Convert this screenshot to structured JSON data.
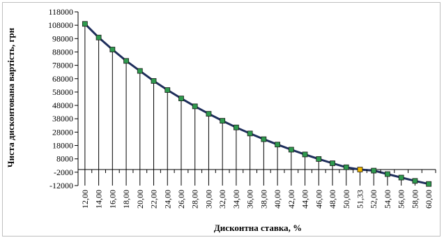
{
  "chart_data": {
    "type": "line",
    "title": "",
    "xlabel": "Дисконтна ставка, %",
    "ylabel": "Чиста дисконтована вартість, грн",
    "x_tick_labels": [
      "12,00",
      "14,00",
      "16,00",
      "18,00",
      "20,00",
      "22,00",
      "24,00",
      "26,00",
      "28,00",
      "30,00",
      "32,00",
      "34,00",
      "36,00",
      "38,00",
      "40,00",
      "42,00",
      "44,00",
      "46,00",
      "48,00",
      "50,00",
      "51,33",
      "52,00",
      "54,00",
      "56,00",
      "58,00",
      "60,00"
    ],
    "y_ticks": [
      -12000,
      -2000,
      8000,
      18000,
      28000,
      38000,
      48000,
      58000,
      68000,
      78000,
      88000,
      98000,
      108000,
      118000
    ],
    "y_tick_labels": [
      "-12000",
      "-2000",
      "8000",
      "18000",
      "28000",
      "38000",
      "48000",
      "58000",
      "68000",
      "78000",
      "88000",
      "98000",
      "108000",
      "118000"
    ],
    "ylim": [
      -12000,
      118000
    ],
    "grid": false,
    "drop_lines": true,
    "series": [
      {
        "values": [
          109000,
          98800,
          89800,
          81300,
          73800,
          66300,
          59500,
          53200,
          47300,
          41700,
          36500,
          31500,
          27000,
          22700,
          18700,
          14900,
          11300,
          7900,
          4700,
          1700,
          0,
          -800,
          -3400,
          -6000,
          -8500,
          -10800
        ],
        "marker_color": "#2e9a4e",
        "highlight_index": 20,
        "highlight_color": "#f0b800",
        "line_color": "#1f2f5c"
      }
    ]
  }
}
